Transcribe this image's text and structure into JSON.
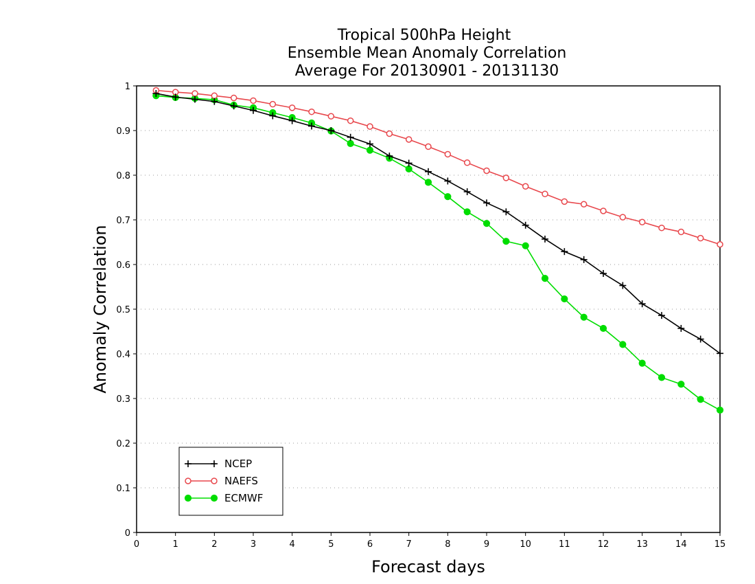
{
  "chart_data": {
    "type": "line",
    "title": [
      "Tropical 500hPa Height",
      "Ensemble Mean Anomaly Correlation",
      "Average For 20130901 - 20131130"
    ],
    "xlabel": "Forecast days",
    "ylabel": "Anomaly Correlation",
    "xlim": [
      0,
      15
    ],
    "ylim": [
      0,
      1
    ],
    "xticks": [
      "0",
      "1",
      "2",
      "3",
      "4",
      "5",
      "6",
      "7",
      "8",
      "9",
      "10",
      "11",
      "12",
      "13",
      "14",
      "15"
    ],
    "yticks": [
      "0",
      "0.1",
      "0.2",
      "0.3",
      "0.4",
      "0.5",
      "0.6",
      "0.7",
      "0.8",
      "0.9",
      "1"
    ],
    "grid": "horizontal dotted",
    "legend_position": "bottom-left",
    "x": [
      0.5,
      1,
      1.5,
      2,
      2.5,
      3,
      3.5,
      4,
      4.5,
      5,
      5.5,
      6,
      6.5,
      7,
      7.5,
      8,
      8.5,
      9,
      9.5,
      10,
      10.5,
      11,
      11.5,
      12,
      12.5,
      13,
      13.5,
      14,
      14.5,
      15
    ],
    "series": [
      {
        "name": "NCEP",
        "color": "#000000",
        "marker": "plus",
        "values": [
          0.983,
          0.975,
          0.97,
          0.965,
          0.955,
          0.945,
          0.933,
          0.922,
          0.91,
          0.9,
          0.885,
          0.87,
          0.843,
          0.827,
          0.808,
          0.787,
          0.763,
          0.738,
          0.718,
          0.688,
          0.657,
          0.629,
          0.611,
          0.58,
          0.553,
          0.512,
          0.486,
          0.457,
          0.433,
          0.401
        ]
      },
      {
        "name": "NAEFS",
        "color": "#e8474c",
        "marker": "open-circle",
        "values": [
          0.99,
          0.986,
          0.983,
          0.978,
          0.973,
          0.967,
          0.959,
          0.951,
          0.942,
          0.932,
          0.922,
          0.909,
          0.893,
          0.88,
          0.864,
          0.847,
          0.828,
          0.81,
          0.794,
          0.775,
          0.758,
          0.741,
          0.735,
          0.72,
          0.706,
          0.695,
          0.682,
          0.673,
          0.659,
          0.645
        ]
      },
      {
        "name": "ECMWF",
        "color": "#00dd00",
        "marker": "filled-circle",
        "values": [
          0.978,
          0.974,
          0.972,
          0.969,
          0.957,
          0.951,
          0.94,
          0.929,
          0.917,
          0.899,
          0.871,
          0.856,
          0.838,
          0.814,
          0.784,
          0.752,
          0.718,
          0.692,
          0.652,
          0.642,
          0.569,
          0.523,
          0.482,
          0.457,
          0.421,
          0.379,
          0.347,
          0.332,
          0.298,
          0.274
        ]
      }
    ]
  }
}
